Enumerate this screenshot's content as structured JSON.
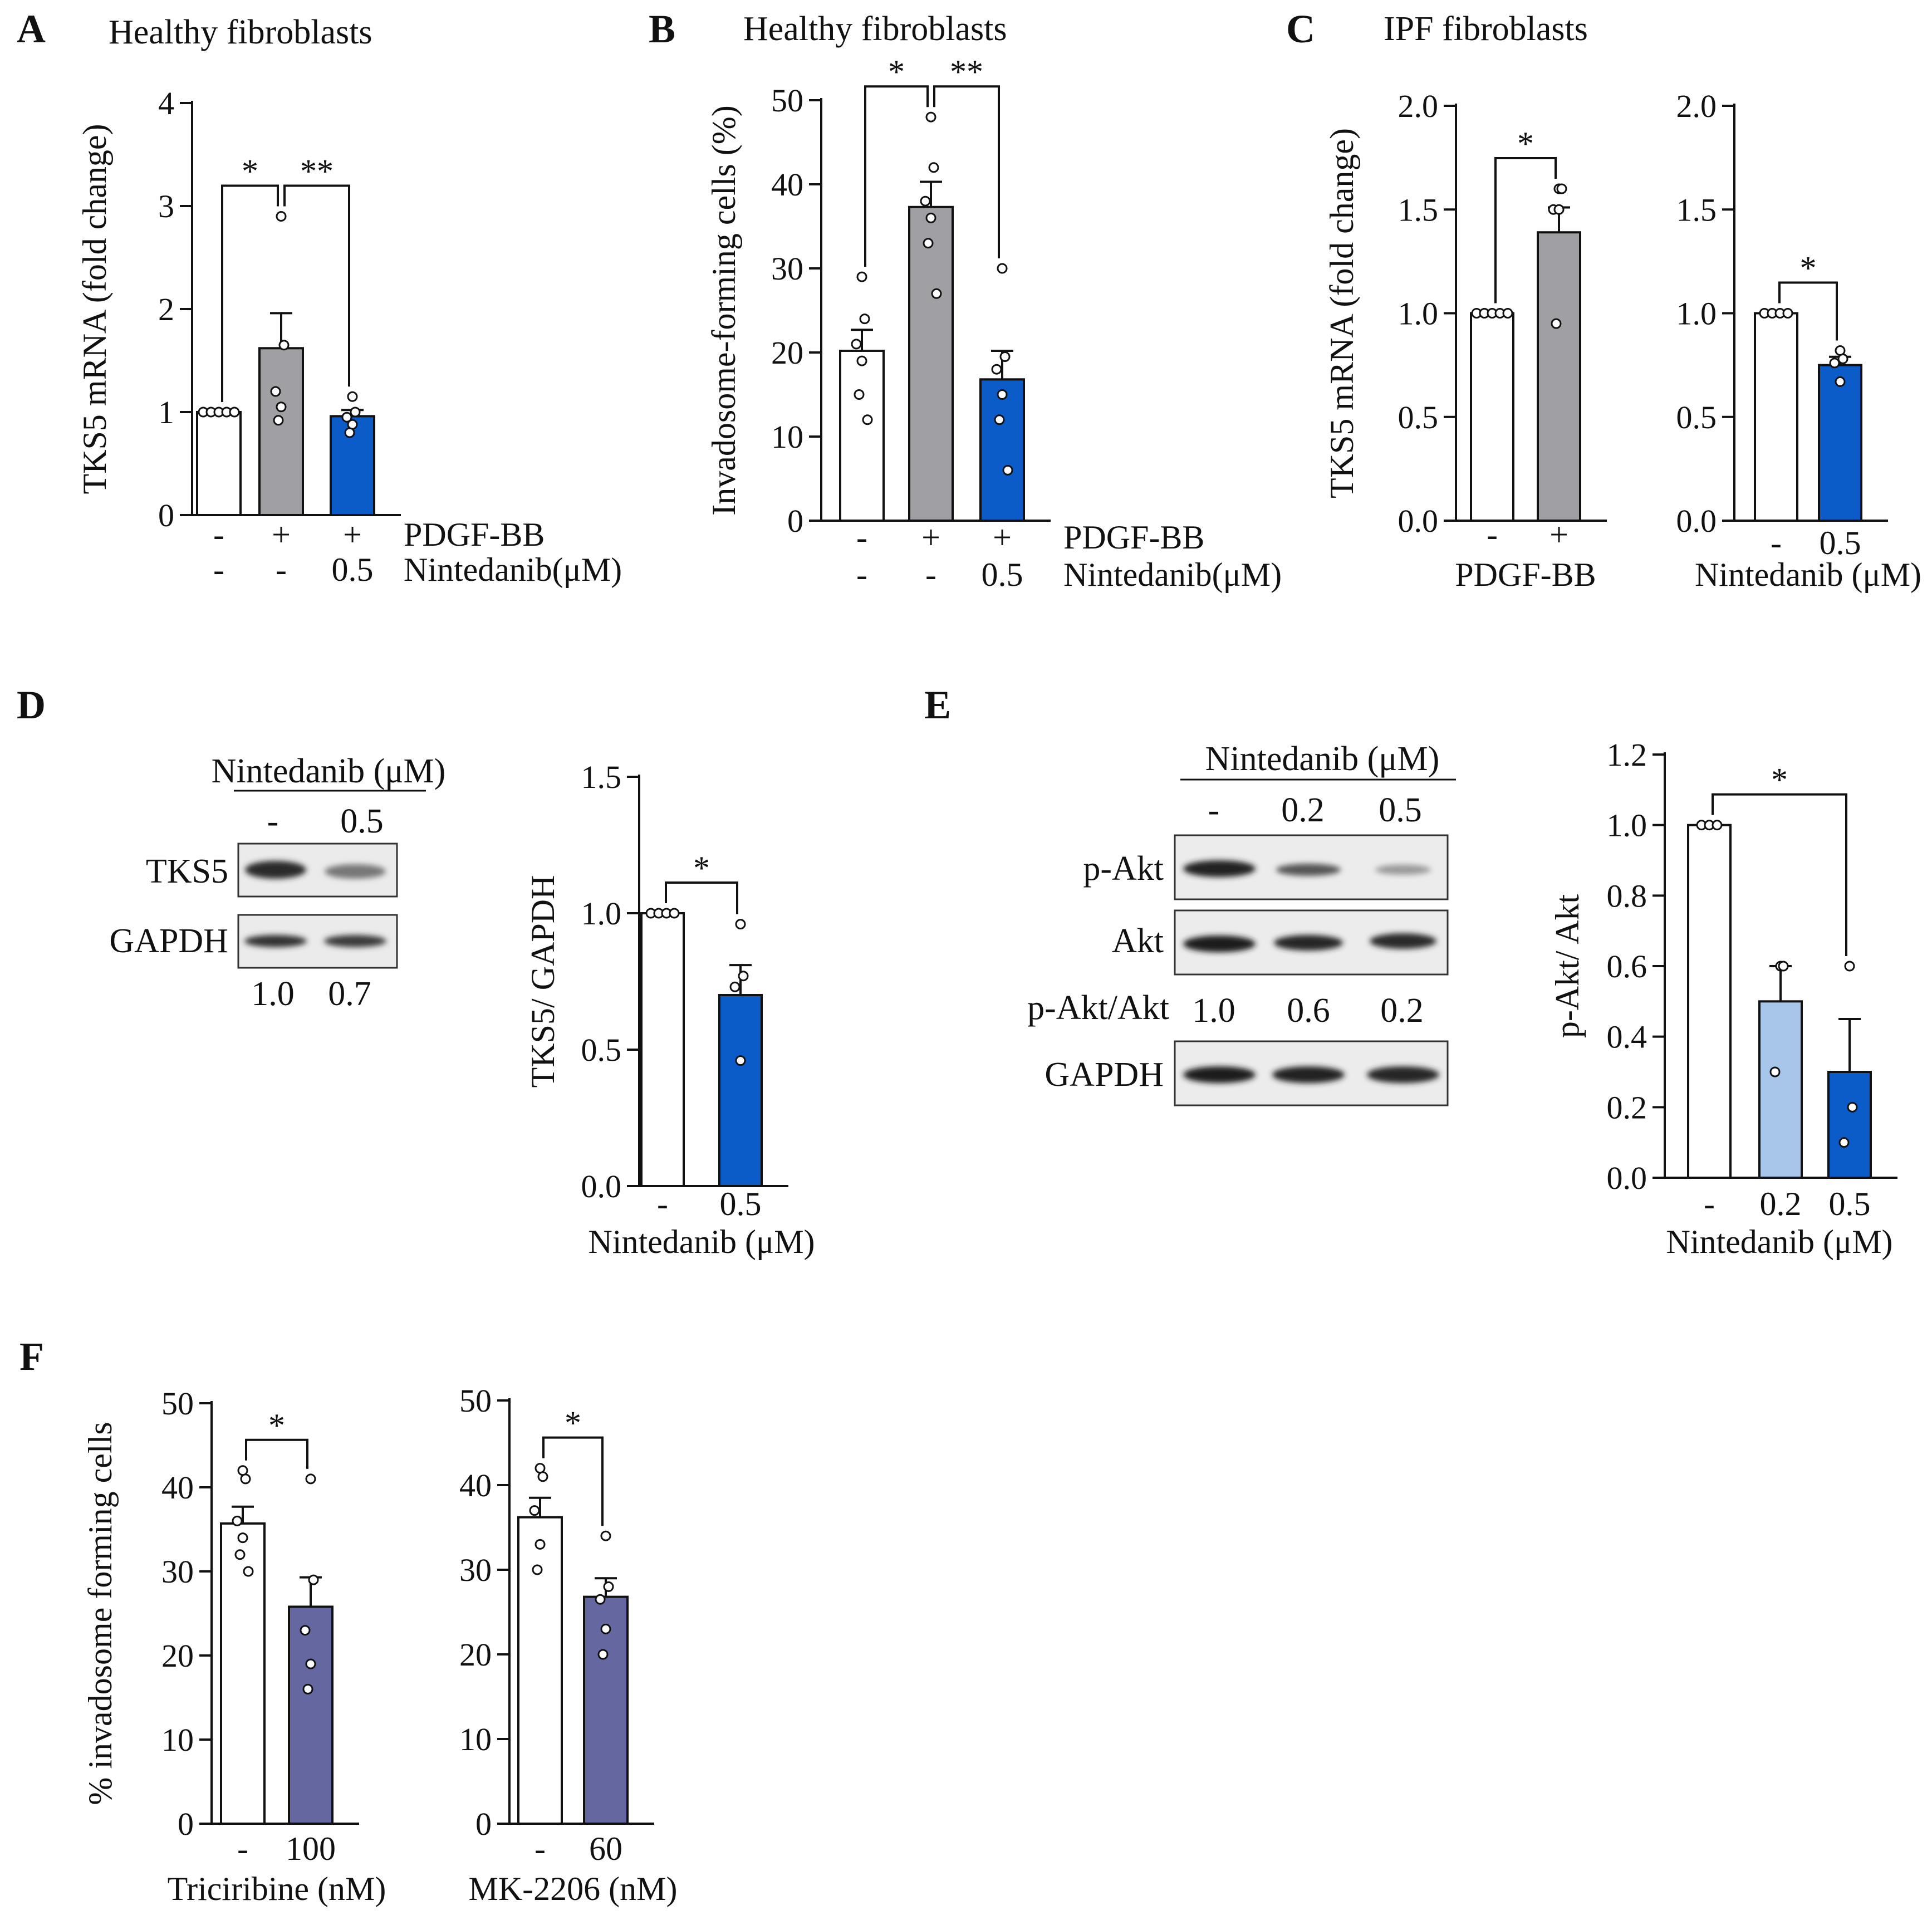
{
  "colors": {
    "white_bar": "#ffffff",
    "gray_bar": "#a0a0a4",
    "blue_bar": "#0b5cc9",
    "light_blue_bar": "#a8c6ea",
    "purple_bar": "#6467a0",
    "axis": "#111111"
  },
  "panel_labels": {
    "A": "A",
    "B": "B",
    "C": "C",
    "D": "D",
    "E": "E",
    "F": "F"
  },
  "chart_data": [
    {
      "id": "A",
      "type": "bar",
      "title": "Healthy fibroblasts",
      "ylabel": "TKS5 mRNA (fold change)",
      "ylim": [
        0,
        4
      ],
      "yticks": [
        "0",
        "1",
        "2",
        "3",
        "4"
      ],
      "categories": [
        "-/-",
        "+/-",
        "+/0.5"
      ],
      "values": [
        1.0,
        1.62,
        0.96
      ],
      "errors": [
        0,
        0.34,
        0.06
      ],
      "points": [
        [
          1,
          1,
          1,
          1,
          1
        ],
        [
          2.9,
          1.65,
          1.2,
          1.05,
          0.92
        ],
        [
          1.15,
          1.0,
          0.95,
          0.88,
          0.8
        ]
      ],
      "fills": [
        "white_bar",
        "gray_bar",
        "blue_bar"
      ],
      "cond_rows": [
        {
          "label": "PDGF-BB",
          "values": [
            "-",
            "+",
            "+"
          ]
        },
        {
          "label": "Nintedanib(μM)",
          "values": [
            "-",
            "-",
            "0.5"
          ]
        }
      ],
      "sig": [
        {
          "from": 0,
          "to": 1,
          "text": "*"
        },
        {
          "from": 1,
          "to": 2,
          "text": "**"
        }
      ]
    },
    {
      "id": "B",
      "type": "bar",
      "title": "Healthy fibroblasts",
      "ylabel": "Invadosome-forming cells (%)",
      "ylim": [
        0,
        50
      ],
      "yticks": [
        "0",
        "10",
        "20",
        "30",
        "40",
        "50"
      ],
      "categories": [
        "-/-",
        "+/-",
        "+/0.5"
      ],
      "values": [
        20.2,
        37.3,
        16.8
      ],
      "errors": [
        2.5,
        3.0,
        3.4
      ],
      "points": [
        [
          29,
          24,
          21,
          19,
          15,
          12
        ],
        [
          48,
          42,
          38,
          36,
          33,
          27
        ],
        [
          30,
          19.5,
          18,
          15,
          12,
          6
        ]
      ],
      "fills": [
        "white_bar",
        "gray_bar",
        "blue_bar"
      ],
      "cond_rows": [
        {
          "label": "PDGF-BB",
          "values": [
            "-",
            "+",
            "+"
          ]
        },
        {
          "label": "Nintedanib(μM)",
          "values": [
            "-",
            "-",
            "0.5"
          ]
        }
      ],
      "sig": [
        {
          "from": 0,
          "to": 1,
          "text": "*"
        },
        {
          "from": 1,
          "to": 2,
          "text": "**"
        }
      ]
    },
    {
      "id": "C1",
      "type": "bar",
      "title": "IPF fibroblasts",
      "ylabel": "TKS5 mRNA (fold change)",
      "ylim": [
        0,
        2
      ],
      "yticks": [
        "0.0",
        "0.5",
        "1.0",
        "1.5",
        "2.0"
      ],
      "categories": [
        "-",
        "+"
      ],
      "values": [
        1.0,
        1.39
      ],
      "errors": [
        0,
        0.12
      ],
      "points": [
        [
          1,
          1,
          1,
          1,
          1
        ],
        [
          1.6,
          1.6,
          1.5,
          1.5,
          0.95
        ]
      ],
      "fills": [
        "white_bar",
        "gray_bar"
      ],
      "cond_rows": [
        {
          "label": "",
          "values": [
            "-",
            "+"
          ]
        }
      ],
      "xlabel": "PDGF-BB",
      "sig": [
        {
          "from": 0,
          "to": 1,
          "text": "*"
        }
      ]
    },
    {
      "id": "C2",
      "type": "bar",
      "ylabel": "",
      "ylim": [
        0,
        2
      ],
      "yticks": [
        "0.0",
        "0.5",
        "1.0",
        "1.5",
        "2.0"
      ],
      "categories": [
        "-",
        "0.5"
      ],
      "values": [
        1.0,
        0.75
      ],
      "errors": [
        0,
        0.04
      ],
      "points": [
        [
          1,
          1,
          1,
          1
        ],
        [
          0.82,
          0.78,
          0.76,
          0.67
        ]
      ],
      "fills": [
        "white_bar",
        "blue_bar"
      ],
      "cond_rows": [
        {
          "label": "",
          "values": [
            "-",
            "0.5"
          ]
        }
      ],
      "xlabel": "Nintedanib (μM)",
      "sig": [
        {
          "from": 0,
          "to": 1,
          "text": "*"
        }
      ]
    },
    {
      "id": "D",
      "type": "bar",
      "ylabel": "TKS5/ GAPDH",
      "ylim": [
        0,
        1.5
      ],
      "yticks": [
        "0.0",
        "0.5",
        "1.0",
        "1.5"
      ],
      "categories": [
        "-",
        "0.5"
      ],
      "values": [
        1.0,
        0.7
      ],
      "errors": [
        0,
        0.11
      ],
      "points": [
        [
          1,
          1,
          1,
          1
        ],
        [
          0.96,
          0.77,
          0.73,
          0.46
        ]
      ],
      "fills": [
        "white_bar",
        "blue_bar"
      ],
      "cond_rows": [
        {
          "label": "",
          "values": [
            "-",
            "0.5"
          ]
        }
      ],
      "xlabel": "Nintedanib (μM)",
      "sig": [
        {
          "from": 0,
          "to": 1,
          "text": "*"
        }
      ]
    },
    {
      "id": "E",
      "type": "bar",
      "ylabel": "p-Akt/ Akt",
      "ylim": [
        0,
        1.2
      ],
      "yticks": [
        "0.0",
        "0.2",
        "0.4",
        "0.6",
        "0.8",
        "1.0",
        "1.2"
      ],
      "categories": [
        "-",
        "0.2",
        "0.5"
      ],
      "values": [
        1.0,
        0.5,
        0.3
      ],
      "errors": [
        0,
        0.1,
        0.15
      ],
      "points": [
        [
          1,
          1,
          1
        ],
        [
          0.6,
          0.6,
          0.3
        ],
        [
          0.6,
          0.2,
          0.1
        ]
      ],
      "fills": [
        "white_bar",
        "light_blue_bar",
        "blue_bar"
      ],
      "cond_rows": [
        {
          "label": "",
          "values": [
            "-",
            "0.2",
            "0.5"
          ]
        }
      ],
      "xlabel": "Nintedanib (μM)",
      "sig": [
        {
          "from": 0,
          "to": 2,
          "text": "*"
        }
      ]
    },
    {
      "id": "F1",
      "type": "bar",
      "ylabel": "% invadosome forming cells",
      "ylim": [
        0,
        50
      ],
      "yticks": [
        "0",
        "10",
        "20",
        "30",
        "40",
        "50"
      ],
      "categories": [
        "-",
        "100"
      ],
      "values": [
        35.7,
        25.8
      ],
      "errors": [
        2.0,
        3.5
      ],
      "points": [
        [
          42,
          41,
          36,
          34,
          32,
          30
        ],
        [
          41,
          29,
          23,
          19,
          16
        ]
      ],
      "fills": [
        "white_bar",
        "purple_bar"
      ],
      "cond_rows": [
        {
          "label": "",
          "values": [
            "-",
            "100"
          ]
        }
      ],
      "xlabel": "Triciribine (nM)",
      "sig": [
        {
          "from": 0,
          "to": 1,
          "text": "*"
        }
      ]
    },
    {
      "id": "F2",
      "type": "bar",
      "ylabel": "",
      "ylim": [
        0,
        50
      ],
      "yticks": [
        "0",
        "10",
        "20",
        "30",
        "40",
        "50"
      ],
      "categories": [
        "-",
        "60"
      ],
      "values": [
        36.2,
        26.8
      ],
      "errors": [
        2.3,
        2.2
      ],
      "points": [
        [
          42,
          41,
          37,
          33,
          30
        ],
        [
          34,
          28,
          26.5,
          23,
          20
        ]
      ],
      "fills": [
        "white_bar",
        "purple_bar"
      ],
      "cond_rows": [
        {
          "label": "",
          "values": [
            "-",
            "60"
          ]
        }
      ],
      "xlabel": "MK-2206 (nM)",
      "sig": [
        {
          "from": 0,
          "to": 1,
          "text": "*"
        }
      ]
    }
  ],
  "blot_D": {
    "header": "Nintedanib (μM)",
    "lanes": [
      "-",
      "0.5"
    ],
    "rows": [
      "TKS5",
      "GAPDH"
    ],
    "quant": [
      "1.0",
      "0.7"
    ]
  },
  "blot_E": {
    "header": "Nintedanib (μM)",
    "lanes": [
      "-",
      "0.2",
      "0.5"
    ],
    "rows": [
      "p-Akt",
      "Akt",
      "GAPDH"
    ],
    "ratio_label": "p-Akt/Akt",
    "ratio_values": [
      "1.0",
      "0.6",
      "0.2"
    ]
  }
}
